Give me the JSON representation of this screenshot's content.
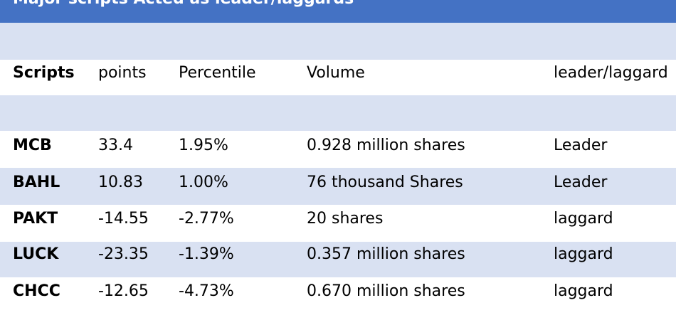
{
  "table": {
    "title": "Major scripts Acted as leader/laggards",
    "headers": {
      "script": "Scripts",
      "points": "points",
      "percentile": "Percentile",
      "volume": "Volume",
      "status": "leader/laggard"
    },
    "rows": [
      {
        "script": "MCB",
        "points": "33.4",
        "percentile": "1.95%",
        "volume": "0.928 million shares",
        "status": "Leader"
      },
      {
        "script": "BAHL",
        "points": "10.83",
        "percentile": "1.00%",
        "volume": "76 thousand Shares",
        "status": "Leader"
      },
      {
        "script": "PAKT",
        "points": "-14.55",
        "percentile": "-2.77%",
        "volume": "20 shares",
        "status": "laggard"
      },
      {
        "script": "LUCK",
        "points": "-23.35",
        "percentile": "-1.39%",
        "volume": "0.357 million shares",
        "status": "laggard"
      },
      {
        "script": "CHCC",
        "points": "-12.65",
        "percentile": "-4.73%",
        "volume": "0.670 million shares",
        "status": "laggard"
      }
    ]
  },
  "colors": {
    "title_background": "#4472c4",
    "band_light": "#d9e1f2",
    "band_white": "#ffffff"
  }
}
